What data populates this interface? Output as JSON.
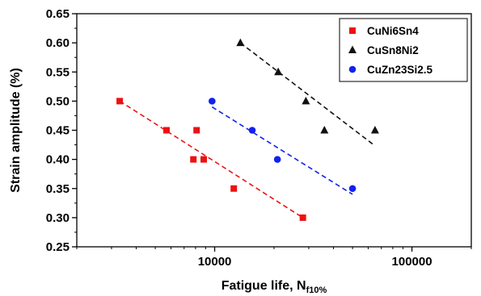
{
  "chart_data": {
    "type": "scatter",
    "title": "",
    "xlabel": "Fatigue life, N",
    "xlabel_sub": "f10%",
    "ylabel": "Strain amplitude (%)",
    "x_scale": "log",
    "xlim": [
      2000,
      200000
    ],
    "ylim": [
      0.25,
      0.65
    ],
    "x_ticks": [
      10000,
      100000
    ],
    "x_tick_labels": [
      "10000",
      "100000"
    ],
    "y_ticks": [
      0.25,
      0.3,
      0.35,
      0.4,
      0.45,
      0.5,
      0.55,
      0.6,
      0.65
    ],
    "y_tick_labels": [
      "0.25",
      "0.30",
      "0.35",
      "0.40",
      "0.45",
      "0.50",
      "0.55",
      "0.60",
      "0.65"
    ],
    "grid": false,
    "legend_position": "top-right",
    "series": [
      {
        "name": "CuNi6Sn4",
        "color": "#ee1111",
        "marker": "square",
        "points": [
          {
            "x": 3300,
            "y": 0.5
          },
          {
            "x": 5700,
            "y": 0.45
          },
          {
            "x": 8100,
            "y": 0.45
          },
          {
            "x": 7800,
            "y": 0.4
          },
          {
            "x": 8800,
            "y": 0.4
          },
          {
            "x": 12500,
            "y": 0.35
          },
          {
            "x": 28000,
            "y": 0.3
          }
        ],
        "fit": [
          {
            "x": 3300,
            "y": 0.5
          },
          {
            "x": 28000,
            "y": 0.3
          }
        ]
      },
      {
        "name": "CuSn8Ni2",
        "color": "#111111",
        "marker": "triangle",
        "points": [
          {
            "x": 13500,
            "y": 0.6
          },
          {
            "x": 21000,
            "y": 0.55
          },
          {
            "x": 29000,
            "y": 0.5
          },
          {
            "x": 36000,
            "y": 0.45
          },
          {
            "x": 65000,
            "y": 0.45
          }
        ],
        "fit": [
          {
            "x": 13500,
            "y": 0.6
          },
          {
            "x": 64000,
            "y": 0.425
          }
        ]
      },
      {
        "name": "CuZn23Si2.5",
        "color": "#1122ee",
        "marker": "circle",
        "points": [
          {
            "x": 9700,
            "y": 0.5
          },
          {
            "x": 15500,
            "y": 0.45
          },
          {
            "x": 20800,
            "y": 0.4
          },
          {
            "x": 50000,
            "y": 0.35
          }
        ],
        "fit": [
          {
            "x": 9700,
            "y": 0.49
          },
          {
            "x": 50000,
            "y": 0.34
          }
        ]
      }
    ]
  }
}
